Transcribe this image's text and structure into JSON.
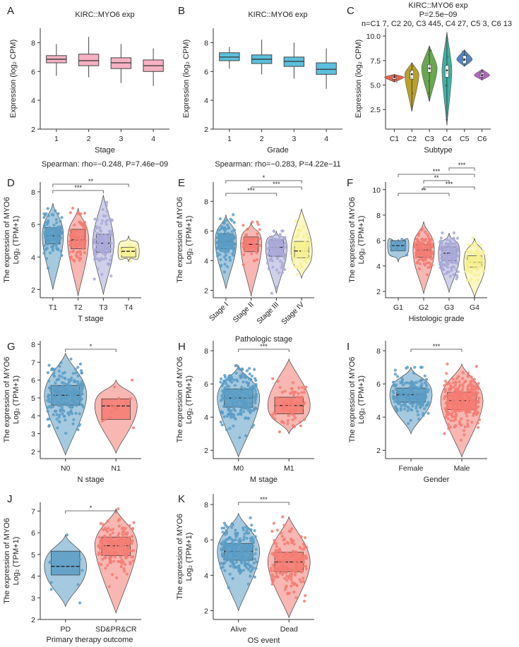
{
  "figure": {
    "alt": "Multi-panel figure: MYO6 expression in KIRC by clinical features"
  },
  "chart_data": [
    {
      "id": "A",
      "type": "box",
      "title": "KIRC::MYO6 exp",
      "footnote": "Spearman: rho=−0.248, P=7.46e−09",
      "xlabel": "Stage",
      "ylabel": "Expression (log₂ CPM)",
      "ylim": [
        2,
        9
      ],
      "yticks": [
        2,
        4,
        6,
        8
      ],
      "categories": [
        "1",
        "2",
        "3",
        "4"
      ],
      "colors": [
        "#f6b1c3",
        "#f6b1c3",
        "#f6b1c3",
        "#f6b1c3"
      ],
      "boxes": [
        {
          "q1": 6.6,
          "median": 6.85,
          "q3": 7.1,
          "lo": 5.7,
          "hi": 7.9
        },
        {
          "q1": 6.4,
          "median": 6.75,
          "q3": 7.2,
          "lo": 5.6,
          "hi": 8.4
        },
        {
          "q1": 6.2,
          "median": 6.6,
          "q3": 6.95,
          "lo": 5.2,
          "hi": 7.9
        },
        {
          "q1": 6.0,
          "median": 6.4,
          "q3": 6.8,
          "lo": 5.0,
          "hi": 7.6
        }
      ]
    },
    {
      "id": "B",
      "type": "box",
      "title": "KIRC::MYO6 exp",
      "footnote": "Spearman: rho=−0.283, P=4.22e−11",
      "xlabel": "Grade",
      "ylabel": "Expression (log₂ CPM)",
      "ylim": [
        2,
        9
      ],
      "yticks": [
        2,
        4,
        6,
        8
      ],
      "categories": [
        "1",
        "2",
        "3",
        "4"
      ],
      "colors": [
        "#5bc0de",
        "#5bc0de",
        "#5bc0de",
        "#5bc0de"
      ],
      "boxes": [
        {
          "q1": 6.75,
          "median": 7.0,
          "q3": 7.3,
          "lo": 6.2,
          "hi": 7.7
        },
        {
          "q1": 6.55,
          "median": 6.85,
          "q3": 7.15,
          "lo": 5.8,
          "hi": 8.2
        },
        {
          "q1": 6.35,
          "median": 6.7,
          "q3": 7.0,
          "lo": 5.5,
          "hi": 8.0
        },
        {
          "q1": 5.8,
          "median": 6.15,
          "q3": 6.6,
          "lo": 4.8,
          "hi": 7.6
        }
      ]
    },
    {
      "id": "C",
      "type": "violin",
      "title": "KIRC::MYO6 exp",
      "pvalue": "P=2.5e−09",
      "counts": "n=C1 7, C2 20, C3 445, C4 27, C5 3, C6 13",
      "xlabel": "Subtype",
      "ylabel": "Expression (log₂ CPM)",
      "ylim": [
        0.5,
        10.8
      ],
      "yticks": [
        2.5,
        5.0,
        7.5,
        10.0
      ],
      "ytick_labels": [
        "2.5",
        "5.0",
        "7.5",
        "10.0"
      ],
      "categories": [
        "C1",
        "C2",
        "C3",
        "C4",
        "C5",
        "C6"
      ],
      "colors": [
        "#e8634a",
        "#b8a12a",
        "#6aa84f",
        "#3fb0a0",
        "#4f86c6",
        "#b565c4"
      ],
      "violins": [
        {
          "lo": 5.3,
          "hi": 6.1,
          "median": 5.8,
          "q1": 5.6,
          "q3": 5.95,
          "w": 14
        },
        {
          "lo": 2.3,
          "hi": 7.3,
          "median": 6.1,
          "q1": 5.6,
          "q3": 6.5,
          "w": 10
        },
        {
          "lo": 3.3,
          "hi": 9.0,
          "median": 6.7,
          "q1": 6.3,
          "q3": 7.1,
          "w": 11
        },
        {
          "lo": 0.9,
          "hi": 10.4,
          "median": 6.5,
          "q1": 5.8,
          "q3": 7.0,
          "w": 7
        },
        {
          "lo": 6.9,
          "hi": 8.6,
          "median": 7.6,
          "q1": 7.2,
          "q3": 8.0,
          "w": 11
        },
        {
          "lo": 5.5,
          "hi": 6.6,
          "median": 6.0,
          "q1": 5.8,
          "q3": 6.3,
          "w": 11
        }
      ]
    },
    {
      "id": "D",
      "type": "violin-box",
      "xlabel": "T stage",
      "ylabel1": "The expression of MYO6",
      "ylabel2": "Log₂ (TPM+1)",
      "ylim": [
        1.5,
        8.6
      ],
      "yticks": [
        2,
        4,
        6,
        8
      ],
      "categories": [
        "T1",
        "T2",
        "T3",
        "T4"
      ],
      "colors": [
        "#5b9cc4",
        "#f37b72",
        "#a9a9d8",
        "#f6f08f"
      ],
      "n_points": [
        110,
        70,
        110,
        6
      ],
      "groups": [
        {
          "lo": 2.0,
          "hi": 7.3,
          "q1": 4.8,
          "median": 5.3,
          "q3": 5.8
        },
        {
          "lo": 1.6,
          "hi": 7.0,
          "q1": 4.5,
          "median": 5.05,
          "q3": 5.7
        },
        {
          "lo": 1.7,
          "hi": 7.8,
          "q1": 4.3,
          "median": 4.85,
          "q3": 5.4
        },
        {
          "lo": 3.7,
          "hi": 5.3,
          "q1": 4.0,
          "median": 4.35,
          "q3": 4.6
        }
      ],
      "brackets": [
        {
          "from": 0,
          "to": 2,
          "label": "***",
          "level": 0
        },
        {
          "from": 0,
          "to": 3,
          "label": "**",
          "level": 1
        }
      ]
    },
    {
      "id": "E",
      "type": "violin-box",
      "xlabel": "Pathologic stage",
      "ylabel1": "The expression of MYO6",
      "ylabel2": "Log₂ (TPM+1)",
      "ylim": [
        1.5,
        9.3
      ],
      "yticks": [
        2,
        4,
        6,
        8
      ],
      "categories": [
        "Stage I",
        "Stage II",
        "Stage III",
        "Stage IV"
      ],
      "rotate": true,
      "colors": [
        "#5b9cc4",
        "#f37b72",
        "#a9a9d8",
        "#f6f08f"
      ],
      "n_points": [
        140,
        40,
        90,
        55
      ],
      "groups": [
        {
          "lo": 2.1,
          "hi": 7.1,
          "q1": 4.8,
          "median": 5.3,
          "q3": 5.8
        },
        {
          "lo": 1.6,
          "hi": 6.6,
          "q1": 4.6,
          "median": 5.1,
          "q3": 5.6
        },
        {
          "lo": 1.8,
          "hi": 6.0,
          "q1": 4.3,
          "median": 4.9,
          "q3": 5.4
        },
        {
          "lo": 2.8,
          "hi": 7.5,
          "q1": 4.2,
          "median": 4.65,
          "q3": 5.3
        }
      ],
      "brackets": [
        {
          "from": 0,
          "to": 2,
          "label": "***",
          "level": 0
        },
        {
          "from": 1,
          "to": 3,
          "label": "***",
          "level": 1
        },
        {
          "from": 0,
          "to": 3,
          "label": "*",
          "level": 2
        }
      ]
    },
    {
      "id": "F",
      "type": "violin-box",
      "xlabel": "Histologic grade",
      "ylabel1": "The expression of MYO6",
      "ylabel2": "Log₂ (TPM+1)",
      "ylim": [
        1.5,
        10.6
      ],
      "yticks": [
        2,
        4,
        6,
        8,
        10
      ],
      "categories": [
        "G1",
        "G2",
        "G3",
        "G4"
      ],
      "colors": [
        "#5b9cc4",
        "#f37b72",
        "#a9a9d8",
        "#f6f08f"
      ],
      "n_points": [
        8,
        120,
        110,
        70
      ],
      "groups": [
        {
          "lo": 4.3,
          "hi": 6.1,
          "q1": 5.2,
          "median": 5.6,
          "q3": 6.0
        },
        {
          "lo": 1.8,
          "hi": 7.5,
          "q1": 4.7,
          "median": 5.25,
          "q3": 5.7
        },
        {
          "lo": 1.9,
          "hi": 6.6,
          "q1": 4.4,
          "median": 5.0,
          "q3": 5.5
        },
        {
          "lo": 1.5,
          "hi": 6.2,
          "q1": 3.9,
          "median": 4.3,
          "q3": 4.8
        }
      ],
      "brackets": [
        {
          "from": 0,
          "to": 2,
          "label": "**",
          "level": 0
        },
        {
          "from": 1,
          "to": 3,
          "label": "***",
          "level": 1
        },
        {
          "from": 1,
          "to": 2,
          "label": "**",
          "level": 2
        },
        {
          "from": 0,
          "to": 3,
          "label": "***",
          "level": 3
        },
        {
          "from": 2,
          "to": 3,
          "label": "***",
          "level": 4
        }
      ]
    },
    {
      "id": "G",
      "type": "violin-box",
      "xlabel": "N stage",
      "ylabel1": "The expression of MYO6",
      "ylabel2": "Log₂ (TPM+1)",
      "ylim": [
        1.6,
        8.2
      ],
      "yticks": [
        2,
        3,
        4,
        5,
        6,
        7,
        8
      ],
      "categories": [
        "N0",
        "N1"
      ],
      "colors": [
        "#5b9cc4",
        "#f37b72"
      ],
      "n_points": [
        200,
        14
      ],
      "groups": [
        {
          "lo": 1.8,
          "hi": 7.5,
          "q1": 4.6,
          "median": 5.15,
          "q3": 5.7
        },
        {
          "lo": 1.9,
          "hi": 6.0,
          "q1": 3.8,
          "median": 4.55,
          "q3": 4.95
        }
      ],
      "brackets": [
        {
          "from": 0,
          "to": 1,
          "label": "*",
          "level": 0
        }
      ]
    },
    {
      "id": "H",
      "type": "violin-box",
      "xlabel": "M stage",
      "ylabel1": "The expression of MYO6",
      "ylabel2": "Log₂ (TPM+1)",
      "ylim": [
        1.5,
        8.6
      ],
      "yticks": [
        2,
        4,
        6,
        8
      ],
      "categories": [
        "M0",
        "M1"
      ],
      "colors": [
        "#5b9cc4",
        "#f37b72"
      ],
      "n_points": [
        220,
        70
      ],
      "groups": [
        {
          "lo": 1.6,
          "hi": 7.1,
          "q1": 4.6,
          "median": 5.15,
          "q3": 5.7
        },
        {
          "lo": 3.0,
          "hi": 7.5,
          "q1": 4.2,
          "median": 4.7,
          "q3": 5.2
        }
      ],
      "brackets": [
        {
          "from": 0,
          "to": 1,
          "label": "***",
          "level": 0
        }
      ]
    },
    {
      "id": "I",
      "type": "violin-box",
      "xlabel": "Gender",
      "ylabel1": "The expression of MYO6",
      "ylabel2": "Log₂ (TPM+1)",
      "ylim": [
        1.5,
        8.6
      ],
      "yticks": [
        2,
        4,
        6,
        8
      ],
      "categories": [
        "Female",
        "Male"
      ],
      "colors": [
        "#5b9cc4",
        "#f37b72"
      ],
      "n_points": [
        180,
        260
      ],
      "groups": [
        {
          "lo": 3.0,
          "hi": 7.0,
          "q1": 4.9,
          "median": 5.35,
          "q3": 5.75
        },
        {
          "lo": 1.6,
          "hi": 7.2,
          "q1": 4.45,
          "median": 5.0,
          "q3": 5.5
        }
      ],
      "brackets": [
        {
          "from": 0,
          "to": 1,
          "label": "***",
          "level": 0
        }
      ]
    },
    {
      "id": "J",
      "type": "violin-box",
      "xlabel": "PD  SD&PR&CR",
      "xlabel_text": "Primary therapy outcome",
      "ylabel1": "The expression of MYO6",
      "ylabel2": "Log₂ (TPM+1)",
      "ylim": [
        2.0,
        7.4
      ],
      "yticks": [
        2,
        3,
        4,
        5,
        6,
        7
      ],
      "categories": [
        "PD",
        "SD&PR&CR"
      ],
      "colors": [
        "#5b9cc4",
        "#f37b72"
      ],
      "n_points": [
        10,
        150
      ],
      "groups": [
        {
          "lo": 2.6,
          "hi": 5.9,
          "q1": 4.05,
          "median": 4.45,
          "q3": 5.15
        },
        {
          "lo": 2.3,
          "hi": 7.1,
          "q1": 4.95,
          "median": 5.4,
          "q3": 5.8
        }
      ],
      "brackets": [
        {
          "from": 0,
          "to": 1,
          "label": "*",
          "level": 0
        }
      ]
    },
    {
      "id": "K",
      "type": "violin-box",
      "xlabel_text": "OS event",
      "ylabel1": "The expression of MYO6",
      "ylabel2": "Log₂ (TPM+1)",
      "ylim": [
        1.5,
        8.6
      ],
      "yticks": [
        2,
        4,
        6,
        8
      ],
      "categories": [
        "Alive",
        "Dead"
      ],
      "colors": [
        "#5b9cc4",
        "#f37b72"
      ],
      "n_points": [
        220,
        170
      ],
      "groups": [
        {
          "lo": 2.0,
          "hi": 7.5,
          "q1": 4.85,
          "median": 5.35,
          "q3": 5.8
        },
        {
          "lo": 1.6,
          "hi": 7.3,
          "q1": 4.2,
          "median": 4.75,
          "q3": 5.3
        }
      ],
      "brackets": [
        {
          "from": 0,
          "to": 1,
          "label": "***",
          "level": 0
        }
      ]
    }
  ]
}
